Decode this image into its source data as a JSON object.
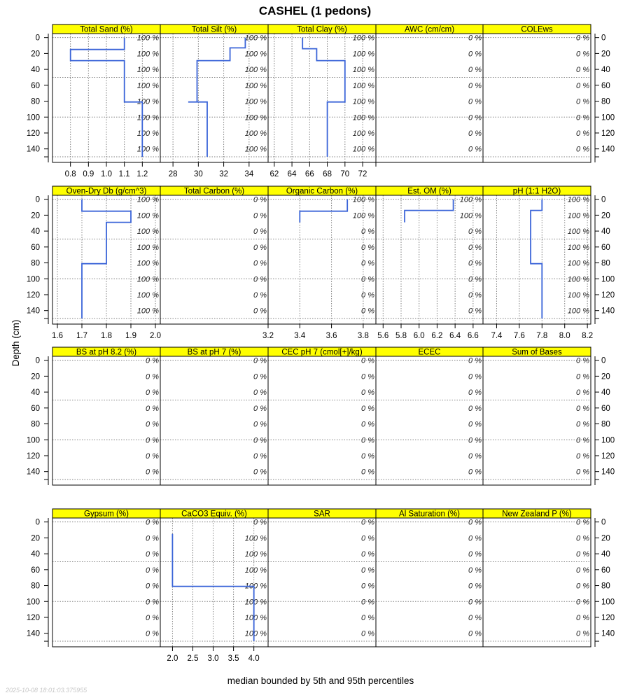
{
  "title": "CASHEL (1 pedons)",
  "ylabel": "Depth (cm)",
  "xlabel": "median bounded by 5th and 95th percentiles",
  "timestamp": "2025-10-08 18:01:03.375955",
  "depth_ticks": [
    0,
    20,
    40,
    60,
    80,
    100,
    120,
    140
  ],
  "colors": {
    "strip": "#ffff00",
    "line": "#3a64d8",
    "grid": "#808080"
  },
  "chart_data": [
    {
      "type": "line",
      "row": 0,
      "col": 0,
      "title": "Total Sand (%)",
      "xlim": [
        0.7,
        1.3
      ],
      "xticks": [
        0.8,
        0.9,
        1.0,
        1.1,
        1.2
      ],
      "xtick_labels": [
        "0.8",
        "0.9",
        "1.0",
        "1.1",
        "1.2"
      ],
      "ylim": [
        -5,
        157
      ],
      "pct_labels": [
        "100 %",
        "100 %",
        "100 %",
        "100 %",
        "100 %",
        "100 %",
        "100 %",
        "100 %"
      ],
      "series": [
        {
          "x": [
            1.1,
            1.1,
            0.8,
            0.8,
            1.1,
            1.1,
            1.2,
            1.2
          ],
          "y": [
            0,
            15,
            15,
            29,
            29,
            81,
            81,
            150
          ]
        }
      ]
    },
    {
      "type": "line",
      "row": 0,
      "col": 1,
      "title": "Total Silt (%)",
      "xlim": [
        27,
        35.5
      ],
      "xticks": [
        28,
        30,
        32,
        34
      ],
      "xtick_labels": [
        "28",
        "30",
        "32",
        "34"
      ],
      "ylim": [
        -5,
        157
      ],
      "pct_labels": [
        "100 %",
        "100 %",
        "100 %",
        "100 %",
        "100 %",
        "100 %",
        "100 %",
        "100 %"
      ],
      "series": [
        {
          "x": [
            33.7,
            33.7,
            32.5,
            32.5,
            29.9,
            29.9,
            29.2,
            29.2,
            30.7,
            30.7
          ],
          "y": [
            0,
            13,
            13,
            29,
            29,
            81,
            81,
            81,
            81,
            150
          ]
        }
      ]
    },
    {
      "type": "line",
      "row": 0,
      "col": 2,
      "title": "Total Clay (%)",
      "xlim": [
        61.3,
        73.5
      ],
      "xticks": [
        62,
        64,
        66,
        68,
        70,
        72
      ],
      "xtick_labels": [
        "62",
        "64",
        "66",
        "68",
        "70",
        "72"
      ],
      "ylim": [
        -5,
        157
      ],
      "pct_labels": [
        "100 %",
        "100 %",
        "100 %",
        "100 %",
        "100 %",
        "100 %",
        "100 %",
        "100 %"
      ],
      "series": [
        {
          "x": [
            65.2,
            65.2,
            66.8,
            66.8,
            70,
            70,
            68,
            68
          ],
          "y": [
            0,
            14,
            14,
            29,
            29,
            81,
            81,
            150
          ]
        }
      ]
    },
    {
      "type": "line",
      "row": 0,
      "col": 3,
      "title": "AWC (cm/cm)",
      "xlim": [
        0,
        1
      ],
      "xticks": [],
      "xtick_labels": [],
      "ylim": [
        -5,
        157
      ],
      "pct_labels": [
        "0 %",
        "0 %",
        "0 %",
        "0 %",
        "0 %",
        "0 %",
        "0 %",
        "0 %"
      ],
      "series": []
    },
    {
      "type": "line",
      "row": 0,
      "col": 4,
      "title": "COLEws",
      "xlim": [
        0,
        1
      ],
      "xticks": [],
      "xtick_labels": [],
      "ylim": [
        -5,
        157
      ],
      "pct_labels": [
        "0 %",
        "0 %",
        "0 %",
        "0 %",
        "0 %",
        "0 %",
        "0 %",
        "0 %"
      ],
      "series": []
    },
    {
      "type": "line",
      "row": 1,
      "col": 0,
      "title": "Oven-Dry Db (g/cm^3)",
      "xlim": [
        1.58,
        2.02
      ],
      "xticks": [
        1.6,
        1.7,
        1.8,
        1.9,
        2.0
      ],
      "xtick_labels": [
        "1.6",
        "1.7",
        "1.8",
        "1.9",
        "2.0"
      ],
      "ylim": [
        -5,
        157
      ],
      "pct_labels": [
        "100 %",
        "100 %",
        "100 %",
        "100 %",
        "100 %",
        "100 %",
        "100 %",
        "100 %"
      ],
      "series": [
        {
          "x": [
            1.7,
            1.7,
            1.9,
            1.9,
            1.8,
            1.8,
            1.7,
            1.7
          ],
          "y": [
            0,
            15,
            15,
            29,
            29,
            81,
            81,
            150
          ]
        }
      ]
    },
    {
      "type": "line",
      "row": 1,
      "col": 1,
      "title": "Total Carbon (%)",
      "xlim": [
        0,
        1
      ],
      "xticks": [],
      "xtick_labels": [],
      "ylim": [
        -5,
        157
      ],
      "pct_labels": [
        "0 %",
        "0 %",
        "0 %",
        "0 %",
        "0 %",
        "0 %",
        "0 %",
        "0 %"
      ],
      "series": []
    },
    {
      "type": "line",
      "row": 1,
      "col": 2,
      "title": "Organic Carbon (%)",
      "xlim": [
        3.2,
        3.88
      ],
      "xticks": [
        3.2,
        3.4,
        3.6,
        3.8
      ],
      "xtick_labels": [
        "3.2",
        "3.4",
        "3.6",
        "3.8"
      ],
      "ylim": [
        -5,
        157
      ],
      "pct_labels": [
        "100 %",
        "100 %",
        "0 %",
        "0 %",
        "0 %",
        "0 %",
        "0 %",
        "0 %"
      ],
      "series": [
        {
          "x": [
            3.7,
            3.7,
            3.4,
            3.4
          ],
          "y": [
            0,
            15,
            15,
            29
          ]
        }
      ]
    },
    {
      "type": "line",
      "row": 1,
      "col": 3,
      "title": "Est. OM (%)",
      "xlim": [
        5.52,
        6.71
      ],
      "xticks": [
        5.6,
        5.8,
        6.0,
        6.2,
        6.4,
        6.6
      ],
      "xtick_labels": [
        "5.6",
        "5.8",
        "6.0",
        "6.2",
        "6.4",
        "6.6"
      ],
      "ylim": [
        -5,
        157
      ],
      "pct_labels": [
        "100 %",
        "100 %",
        "0 %",
        "0 %",
        "0 %",
        "0 %",
        "0 %",
        "0 %"
      ],
      "series": [
        {
          "x": [
            6.38,
            6.38,
            5.84,
            5.84
          ],
          "y": [
            0,
            14,
            14,
            29
          ]
        }
      ]
    },
    {
      "type": "line",
      "row": 1,
      "col": 4,
      "title": "pH (1:1 H2O)",
      "xlim": [
        7.28,
        8.23
      ],
      "xticks": [
        7.4,
        7.6,
        7.8,
        8.0,
        8.2
      ],
      "xtick_labels": [
        "7.4",
        "7.6",
        "7.8",
        "8.0",
        "8.2"
      ],
      "ylim": [
        -5,
        157
      ],
      "pct_labels": [
        "100 %",
        "100 %",
        "100 %",
        "100 %",
        "100 %",
        "100 %",
        "100 %",
        "100 %"
      ],
      "series": [
        {
          "x": [
            7.8,
            7.8,
            7.7,
            7.7,
            7.8,
            7.8
          ],
          "y": [
            0,
            14,
            14,
            81,
            81,
            150
          ]
        }
      ]
    },
    {
      "type": "line",
      "row": 2,
      "col": 0,
      "title": "BS at pH 8.2 (%)",
      "xlim": [
        0,
        1
      ],
      "xticks": [],
      "xtick_labels": [],
      "ylim": [
        -5,
        157
      ],
      "pct_labels": [
        "0 %",
        "0 %",
        "0 %",
        "0 %",
        "0 %",
        "0 %",
        "0 %",
        "0 %"
      ],
      "series": []
    },
    {
      "type": "line",
      "row": 2,
      "col": 1,
      "title": "BS at pH 7 (%)",
      "xlim": [
        0,
        1
      ],
      "xticks": [],
      "xtick_labels": [],
      "ylim": [
        -5,
        157
      ],
      "pct_labels": [
        "0 %",
        "0 %",
        "0 %",
        "0 %",
        "0 %",
        "0 %",
        "0 %",
        "0 %"
      ],
      "series": []
    },
    {
      "type": "line",
      "row": 2,
      "col": 2,
      "title": "CEC pH 7 (cmol[+]/kg)",
      "xlim": [
        0,
        1
      ],
      "xticks": [],
      "xtick_labels": [],
      "ylim": [
        -5,
        157
      ],
      "pct_labels": [
        "0 %",
        "0 %",
        "0 %",
        "0 %",
        "0 %",
        "0 %",
        "0 %",
        "0 %"
      ],
      "series": []
    },
    {
      "type": "line",
      "row": 2,
      "col": 3,
      "title": "ECEC",
      "xlim": [
        0,
        1
      ],
      "xticks": [],
      "xtick_labels": [],
      "ylim": [
        -5,
        157
      ],
      "pct_labels": [
        "0 %",
        "0 %",
        "0 %",
        "0 %",
        "0 %",
        "0 %",
        "0 %",
        "0 %"
      ],
      "series": []
    },
    {
      "type": "line",
      "row": 2,
      "col": 4,
      "title": "Sum of Bases",
      "xlim": [
        0,
        1
      ],
      "xticks": [],
      "xtick_labels": [],
      "ylim": [
        -5,
        157
      ],
      "pct_labels": [
        "0 %",
        "0 %",
        "0 %",
        "0 %",
        "0 %",
        "0 %",
        "0 %",
        "0 %"
      ],
      "series": []
    },
    {
      "type": "line",
      "row": 3,
      "col": 0,
      "title": "Gypsum (%)",
      "xlim": [
        0,
        1
      ],
      "xticks": [],
      "xtick_labels": [],
      "ylim": [
        -5,
        157
      ],
      "pct_labels": [
        "0 %",
        "0 %",
        "0 %",
        "0 %",
        "0 %",
        "0 %",
        "0 %",
        "0 %"
      ],
      "series": []
    },
    {
      "type": "line",
      "row": 3,
      "col": 1,
      "title": "CaCO3 Equiv. (%)",
      "xlim": [
        1.7,
        4.35
      ],
      "xticks": [
        2.0,
        2.5,
        3.0,
        3.5,
        4.0
      ],
      "xtick_labels": [
        "2.0",
        "2.5",
        "3.0",
        "3.5",
        "4.0"
      ],
      "ylim": [
        -5,
        157
      ],
      "pct_labels": [
        "0 %",
        "100 %",
        "100 %",
        "100 %",
        "100 %",
        "100 %",
        "100 %",
        "100 %"
      ],
      "series": [
        {
          "x": [
            2.0,
            2.0,
            4.0,
            4.0
          ],
          "y": [
            15,
            81,
            81,
            150
          ]
        }
      ]
    },
    {
      "type": "line",
      "row": 3,
      "col": 2,
      "title": "SAR",
      "xlim": [
        0,
        1
      ],
      "xticks": [],
      "xtick_labels": [],
      "ylim": [
        -5,
        157
      ],
      "pct_labels": [
        "0 %",
        "0 %",
        "0 %",
        "0 %",
        "0 %",
        "0 %",
        "0 %",
        "0 %"
      ],
      "series": []
    },
    {
      "type": "line",
      "row": 3,
      "col": 3,
      "title": "Al Saturation (%)",
      "xlim": [
        0,
        1
      ],
      "xticks": [],
      "xtick_labels": [],
      "ylim": [
        -5,
        157
      ],
      "pct_labels": [
        "0 %",
        "0 %",
        "0 %",
        "0 %",
        "0 %",
        "0 %",
        "0 %",
        "0 %"
      ],
      "series": []
    },
    {
      "type": "line",
      "row": 3,
      "col": 4,
      "title": "New Zealand P (%)",
      "xlim": [
        0,
        1
      ],
      "xticks": [],
      "xtick_labels": [],
      "ylim": [
        -5,
        157
      ],
      "pct_labels": [
        "0 %",
        "0 %",
        "0 %",
        "0 %",
        "0 %",
        "0 %",
        "0 %",
        "0 %"
      ],
      "series": []
    }
  ]
}
